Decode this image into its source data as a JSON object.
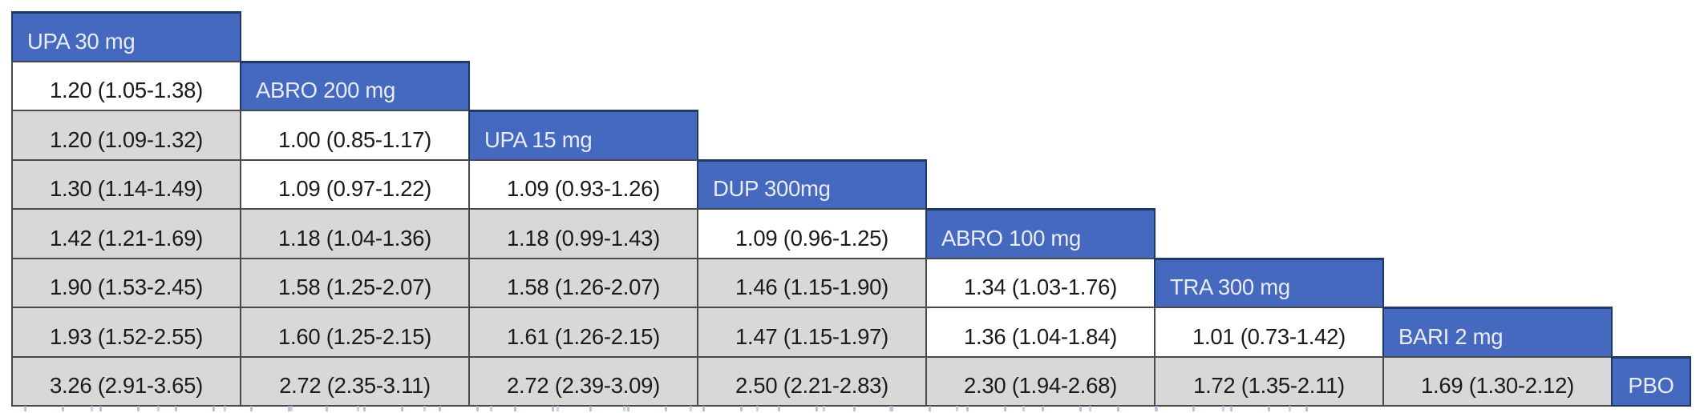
{
  "table": {
    "treatments": [
      "UPA 30 mg",
      "ABRO 200 mg",
      "UPA 15 mg",
      "DUP 300mg",
      "ABRO 100 mg",
      "TRA 300 mg",
      "BARI 2 mg",
      "PBO"
    ],
    "rows": [
      {
        "header": "UPA 30 mg",
        "cells": []
      },
      {
        "header": "ABRO 200 mg",
        "cells": [
          {
            "text": "1.20 (1.05-1.38)",
            "shade": "white"
          }
        ]
      },
      {
        "header": "UPA 15 mg",
        "cells": [
          {
            "text": "1.20 (1.09-1.32)",
            "shade": "gray"
          },
          {
            "text": "1.00 (0.85-1.17)",
            "shade": "white"
          }
        ]
      },
      {
        "header": "DUP 300mg",
        "cells": [
          {
            "text": "1.30 (1.14-1.49)",
            "shade": "gray"
          },
          {
            "text": "1.09 (0.97-1.22)",
            "shade": "white"
          },
          {
            "text": "1.09 (0.93-1.26)",
            "shade": "white"
          }
        ]
      },
      {
        "header": "ABRO 100 mg",
        "cells": [
          {
            "text": "1.42 (1.21-1.69)",
            "shade": "gray"
          },
          {
            "text": "1.18 (1.04-1.36)",
            "shade": "gray"
          },
          {
            "text": "1.18 (0.99-1.43)",
            "shade": "gray"
          },
          {
            "text": "1.09 (0.96-1.25)",
            "shade": "white"
          }
        ]
      },
      {
        "header": "TRA 300 mg",
        "cells": [
          {
            "text": "1.90 (1.53-2.45)",
            "shade": "gray"
          },
          {
            "text": "1.58 (1.25-2.07)",
            "shade": "gray"
          },
          {
            "text": "1.58 (1.26-2.07)",
            "shade": "gray"
          },
          {
            "text": "1.46 (1.15-1.90)",
            "shade": "gray"
          },
          {
            "text": "1.34 (1.03-1.76)",
            "shade": "white"
          }
        ]
      },
      {
        "header": "BARI 2 mg",
        "cells": [
          {
            "text": "1.93 (1.52-2.55)",
            "shade": "gray"
          },
          {
            "text": "1.60 (1.25-2.15)",
            "shade": "gray"
          },
          {
            "text": "1.61 (1.26-2.15)",
            "shade": "gray"
          },
          {
            "text": "1.47 (1.15-1.97)",
            "shade": "gray"
          },
          {
            "text": "1.36 (1.04-1.84)",
            "shade": "white"
          },
          {
            "text": "1.01 (0.73-1.42)",
            "shade": "white"
          }
        ]
      },
      {
        "header": "PBO",
        "cells": [
          {
            "text": "3.26 (2.91-3.65)",
            "shade": "gray"
          },
          {
            "text": "2.72 (2.35-3.11)",
            "shade": "gray"
          },
          {
            "text": "2.72 (2.39-3.09)",
            "shade": "gray"
          },
          {
            "text": "2.50 (2.21-2.83)",
            "shade": "gray"
          },
          {
            "text": "2.30 (1.94-2.68)",
            "shade": "gray"
          },
          {
            "text": "1.72 (1.35-2.11)",
            "shade": "gray"
          },
          {
            "text": "1.69 (1.30-2.12)",
            "shade": "gray"
          }
        ]
      }
    ]
  },
  "colors": {
    "header_bg": "#4569be",
    "header_border": "#1f3864",
    "header_text": "#e9ecf7",
    "gray_cell": "#d8d8d8",
    "white_cell": "#ffffff",
    "cell_border": "#4a4a4a",
    "cell_text": "#1b1b1b"
  },
  "chart_data": {
    "type": "table",
    "title": "",
    "layout": "lower-triangle league table, diagonal = treatment names, cells = estimate (95% interval)",
    "diagonal": [
      "UPA 30 mg",
      "ABRO 200 mg",
      "UPA 15 mg",
      "DUP 300mg",
      "ABRO 100 mg",
      "TRA 300 mg",
      "BARI 2 mg",
      "PBO"
    ],
    "rows": [
      {
        "treatment": "UPA 30 mg",
        "values": []
      },
      {
        "treatment": "ABRO 200 mg",
        "values": [
          "1.20 (1.05-1.38)"
        ]
      },
      {
        "treatment": "UPA 15 mg",
        "values": [
          "1.20 (1.09-1.32)",
          "1.00 (0.85-1.17)"
        ]
      },
      {
        "treatment": "DUP 300mg",
        "values": [
          "1.30 (1.14-1.49)",
          "1.09 (0.97-1.22)",
          "1.09 (0.93-1.26)"
        ]
      },
      {
        "treatment": "ABRO 100 mg",
        "values": [
          "1.42 (1.21-1.69)",
          "1.18 (1.04-1.36)",
          "1.18 (0.99-1.43)",
          "1.09 (0.96-1.25)"
        ]
      },
      {
        "treatment": "TRA 300 mg",
        "values": [
          "1.90 (1.53-2.45)",
          "1.58 (1.25-2.07)",
          "1.58 (1.26-2.07)",
          "1.46 (1.15-1.90)",
          "1.34 (1.03-1.76)"
        ]
      },
      {
        "treatment": "BARI 2 mg",
        "values": [
          "1.93 (1.52-2.55)",
          "1.60 (1.25-2.15)",
          "1.61 (1.26-2.15)",
          "1.47 (1.15-1.97)",
          "1.36 (1.04-1.84)",
          "1.01 (0.73-1.42)"
        ]
      },
      {
        "treatment": "PBO",
        "values": [
          "3.26 (2.91-3.65)",
          "2.72 (2.35-3.11)",
          "2.72 (2.39-3.09)",
          "2.50 (2.21-2.83)",
          "2.30 (1.94-2.68)",
          "1.72 (1.35-2.11)",
          "1.69 (1.30-2.12)"
        ]
      }
    ],
    "cell_shading": "gray or white per cell as recorded in table.rows"
  }
}
